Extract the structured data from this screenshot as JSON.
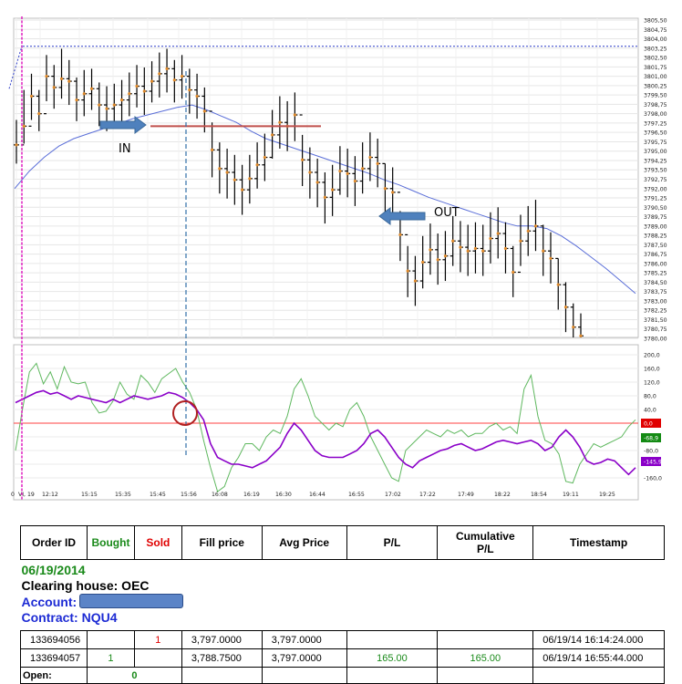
{
  "chart_data": [
    {
      "type": "line",
      "title": "",
      "price_axis": {
        "min": 3780.0,
        "max": 3805.5,
        "step": 0.75,
        "tick_labels": [
          "3805,50",
          "3804,75",
          "3804,00",
          "3803,25",
          "3802,50",
          "3801,75",
          "3801,00",
          "3800,25",
          "3799,50",
          "3798,75",
          "3798,00",
          "3797,25",
          "3796,50",
          "3795,75",
          "3795,00",
          "3794,25",
          "3793,50",
          "3792,75",
          "3792,00",
          "3791,25",
          "3790,50",
          "3789,75",
          "3789,00",
          "3788,25",
          "3787,50",
          "3786,75",
          "3786,00",
          "3785,25",
          "3784,50",
          "3783,75",
          "3783,00",
          "3782,25",
          "3781,50",
          "3780,75",
          "3780,00"
        ]
      },
      "time_axis": {
        "tick_labels": [
          "VI, 19",
          "12:12",
          "15:15",
          "15:35",
          "15:45",
          "15:56",
          "16:08",
          "16:19",
          "16:30",
          "16:44",
          "16:55",
          "17:02",
          "17:22",
          "17:49",
          "18:22",
          "18:54",
          "19:11",
          "19:25"
        ]
      },
      "bars_close": [
        3795.5,
        3797.0,
        3799.4,
        3798.0,
        3801.0,
        3800.1,
        3800.8,
        3800.6,
        3799.1,
        3799.6,
        3800.0,
        3798.7,
        3798.4,
        3798.7,
        3799.1,
        3799.6,
        3800.2,
        3799.8,
        3800.6,
        3801.2,
        3801.6,
        3800.7,
        3801.0,
        3799.9,
        3799.4,
        3798.2,
        3795.1,
        3793.6,
        3793.3,
        3792.7,
        3791.9,
        3792.8,
        3793.9,
        3794.5,
        3796.3,
        3797.3,
        3797.0,
        3797.9,
        3794.3,
        3793.3,
        3792.5,
        3791.3,
        3791.9,
        3793.4,
        3793.2,
        3792.6,
        3793.6,
        3794.5,
        3794.0,
        3792.0,
        3791.7,
        3788.3,
        3785.4,
        3784.6,
        3786.1,
        3787.1,
        3786.3,
        3786.6,
        3787.8,
        3787.3,
        3787.0,
        3787.2,
        3787.0,
        3788.0,
        3788.4,
        3787.2,
        3785.3,
        3787.8,
        3788.6,
        3789.0,
        3787.0,
        3786.4,
        3784.3,
        3782.5,
        3780.9,
        3780.2
      ],
      "bars_range": [
        [
          3794.0,
          3797.5
        ],
        [
          3795.6,
          3799.9
        ],
        [
          3797.5,
          3801.2
        ],
        [
          3796.6,
          3799.9
        ],
        [
          3799.0,
          3802.7
        ],
        [
          3798.4,
          3801.9
        ],
        [
          3799.2,
          3803.2
        ],
        [
          3798.7,
          3802.3
        ],
        [
          3797.4,
          3800.9
        ],
        [
          3797.8,
          3801.5
        ],
        [
          3798.3,
          3801.6
        ],
        [
          3797.0,
          3800.5
        ],
        [
          3796.6,
          3800.2
        ],
        [
          3797.0,
          3800.4
        ],
        [
          3797.3,
          3800.7
        ],
        [
          3797.8,
          3801.3
        ],
        [
          3798.5,
          3801.9
        ],
        [
          3797.9,
          3801.7
        ],
        [
          3798.9,
          3802.2
        ],
        [
          3799.3,
          3802.9
        ],
        [
          3799.7,
          3803.2
        ],
        [
          3798.9,
          3802.3
        ],
        [
          3799.2,
          3802.7
        ],
        [
          3798.0,
          3801.6
        ],
        [
          3797.6,
          3801.2
        ],
        [
          3796.5,
          3800.1
        ],
        [
          3792.9,
          3797.3
        ],
        [
          3791.6,
          3795.7
        ],
        [
          3791.2,
          3795.2
        ],
        [
          3790.7,
          3794.7
        ],
        [
          3789.9,
          3793.9
        ],
        [
          3790.8,
          3794.7
        ],
        [
          3792.0,
          3795.7
        ],
        [
          3792.6,
          3796.4
        ],
        [
          3794.4,
          3798.3
        ],
        [
          3795.2,
          3799.4
        ],
        [
          3795.0,
          3799.0
        ],
        [
          3795.8,
          3799.7
        ],
        [
          3792.2,
          3796.3
        ],
        [
          3791.2,
          3795.3
        ],
        [
          3790.5,
          3794.4
        ],
        [
          3789.2,
          3793.3
        ],
        [
          3789.8,
          3793.9
        ],
        [
          3791.5,
          3795.4
        ],
        [
          3791.3,
          3795.2
        ],
        [
          3790.6,
          3794.6
        ],
        [
          3791.6,
          3795.7
        ],
        [
          3792.6,
          3796.5
        ],
        [
          3792.1,
          3796.0
        ],
        [
          3790.0,
          3794.0
        ],
        [
          3789.6,
          3793.7
        ],
        [
          3786.2,
          3790.2
        ],
        [
          3783.3,
          3787.4
        ],
        [
          3782.6,
          3786.6
        ],
        [
          3784.0,
          3788.2
        ],
        [
          3785.1,
          3789.2
        ],
        [
          3784.3,
          3788.4
        ],
        [
          3784.6,
          3788.6
        ],
        [
          3785.8,
          3789.8
        ],
        [
          3785.3,
          3789.4
        ],
        [
          3785.0,
          3789.1
        ],
        [
          3785.2,
          3789.3
        ],
        [
          3785.0,
          3789.1
        ],
        [
          3786.0,
          3790.1
        ],
        [
          3786.4,
          3790.5
        ],
        [
          3785.2,
          3789.3
        ],
        [
          3783.3,
          3787.4
        ],
        [
          3785.8,
          3789.9
        ],
        [
          3786.6,
          3790.6
        ],
        [
          3787.0,
          3791.1
        ],
        [
          3785.0,
          3789.1
        ],
        [
          3784.4,
          3788.5
        ],
        [
          3782.3,
          3786.4
        ],
        [
          3780.5,
          3784.5
        ],
        [
          3779.2,
          3782.8
        ],
        [
          3778.8,
          3782.0
        ]
      ],
      "moving_average": [
        3792.0,
        3793.4,
        3794.5,
        3795.4,
        3796.0,
        3796.4,
        3796.8,
        3797.2,
        3797.6,
        3797.9,
        3798.2,
        3798.5,
        3798.7,
        3798.3,
        3797.8,
        3797.3,
        3796.6,
        3796.0,
        3795.6,
        3795.2,
        3794.8,
        3794.4,
        3794.0,
        3793.6,
        3793.2,
        3792.7,
        3792.3,
        3791.8,
        3791.3,
        3790.9,
        3790.5,
        3790.1,
        3789.7,
        3789.3,
        3789.0,
        3789.0,
        3788.8,
        3788.2,
        3787.4,
        3786.5,
        3785.6,
        3784.6,
        3783.6
      ],
      "entry_price": 3797.0,
      "max_line_price": 3803.4,
      "annotations": [
        "IN",
        "OUT"
      ]
    },
    {
      "type": "line",
      "title": "",
      "y_axis": {
        "min": -160,
        "max": 200,
        "step": 40,
        "tick_labels": [
          "200,0",
          "160,0",
          "120,0",
          "80,0",
          "40,0",
          "0,0",
          "-40,0",
          "-80,0",
          "-120,0",
          "-160,0"
        ]
      },
      "value_labels": [
        {
          "text": "0,0",
          "color": "#e00000"
        },
        {
          "text": "-68,9",
          "color": "#138a13"
        },
        {
          "text": "-145,9",
          "color": "#8a00c8"
        }
      ],
      "series": [
        {
          "color": "#5fb85f",
          "values": [
            -80,
            40,
            150,
            175,
            115,
            150,
            100,
            165,
            120,
            115,
            120,
            60,
            30,
            35,
            65,
            120,
            85,
            70,
            140,
            120,
            90,
            130,
            145,
            160,
            120,
            90,
            40,
            -50,
            -130,
            -200,
            -185,
            -130,
            -100,
            -60,
            -60,
            -80,
            -40,
            -20,
            -30,
            20,
            100,
            130,
            80,
            20,
            0,
            -20,
            0,
            -10,
            40,
            60,
            20,
            -40,
            -80,
            -120,
            -160,
            -170,
            -80,
            -60,
            -40,
            -20,
            -30,
            -40,
            -20,
            -30,
            -20,
            -40,
            -30,
            -30,
            -10,
            0,
            -20,
            -10,
            -30,
            100,
            140,
            20,
            -50,
            -60,
            -90,
            -170,
            -175,
            -120,
            -90,
            -60,
            -70,
            -60,
            -50,
            -40,
            -10,
            10
          ]
        },
        {
          "color": "#8a00c8",
          "values": [
            60,
            70,
            80,
            90,
            95,
            85,
            90,
            80,
            70,
            80,
            75,
            70,
            65,
            60,
            70,
            60,
            70,
            80,
            75,
            70,
            75,
            80,
            90,
            85,
            75,
            60,
            40,
            10,
            -60,
            -100,
            -110,
            -120,
            -120,
            -125,
            -130,
            -120,
            -110,
            -90,
            -70,
            -30,
            0,
            -20,
            -50,
            -80,
            -95,
            -100,
            -100,
            -100,
            -90,
            -80,
            -60,
            -30,
            -20,
            -40,
            -70,
            -100,
            -120,
            -130,
            -110,
            -100,
            -90,
            -80,
            -75,
            -65,
            -60,
            -70,
            -80,
            -75,
            -65,
            -55,
            -50,
            -55,
            -60,
            -55,
            -50,
            -60,
            -80,
            -70,
            -40,
            -20,
            -40,
            -70,
            -110,
            -120,
            -115,
            -105,
            -110,
            -130,
            -150,
            -130
          ]
        }
      ]
    }
  ],
  "table": {
    "headers": {
      "order_id": "Order ID",
      "bought": "Bought",
      "sold": "Sold",
      "fill_price": "Fill price",
      "avg_price": "Avg Price",
      "pl": "P/L",
      "cumulative": "Cumulative P/L",
      "timestamp": "Timestamp"
    },
    "date": "06/19/2014",
    "clearing_house": "Clearing house: OEC",
    "account_label": "Account:",
    "contract": "Contract: NQU4",
    "rows": [
      {
        "order_id": "133694056",
        "bought": "",
        "sold": "1",
        "fill_price": "3,797.0000",
        "avg_price": "3,797.0000",
        "pl": "",
        "cumulative": "",
        "timestamp": "06/19/14 16:14:24.000"
      },
      {
        "order_id": "133694057",
        "bought": "1",
        "sold": "",
        "fill_price": "3,788.7500",
        "avg_price": "3,797.0000",
        "pl": "165.00",
        "cumulative": "165.00",
        "timestamp": "06/19/14 16:55:44.000"
      }
    ],
    "open_label": "Open:",
    "open_value": "0"
  },
  "colors": {
    "bars": "#000000",
    "close_dot": "#e08a2a",
    "moving_average": "#5a6ed8",
    "entry_line": "#c0504d",
    "arrow": "#4f81bd",
    "signal_green": "#5fb85f",
    "signal_purple": "#8a00c8",
    "zero_line": "#ff4040",
    "session_marker": "#e020c0"
  },
  "icons": [
    "arrow-right-icon",
    "arrow-left-icon",
    "red-circle-marker"
  ]
}
